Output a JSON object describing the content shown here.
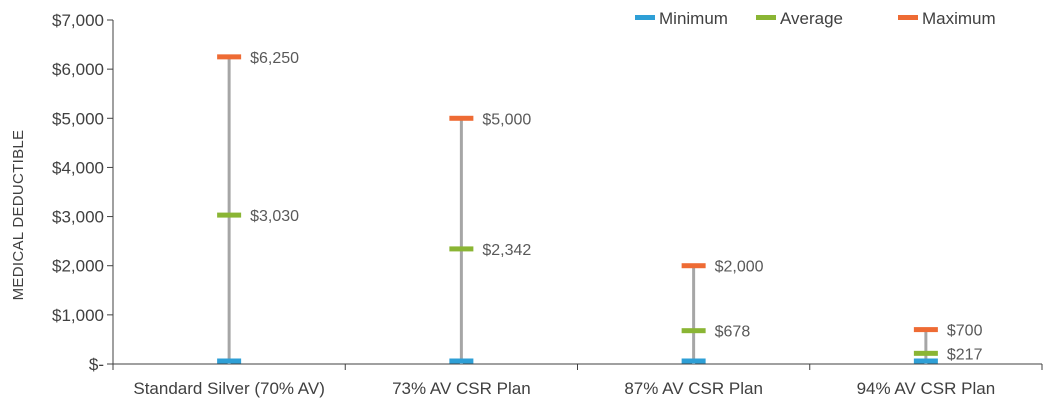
{
  "chart_data": {
    "type": "range",
    "ylabel": "MEDICAL DEDUCTIBLE",
    "ylim": [
      0,
      7000
    ],
    "y_ticks": [
      0,
      1000,
      2000,
      3000,
      4000,
      5000,
      6000,
      7000
    ],
    "y_tick_labels": [
      "$-",
      "$1,000",
      "$2,000",
      "$3,000",
      "$4,000",
      "$5,000",
      "$6,000",
      "$7,000"
    ],
    "categories": [
      "Standard Silver (70% AV)",
      "73% AV CSR Plan",
      "87% AV CSR Plan",
      "94% AV CSR Plan"
    ],
    "legend_position": "top-right",
    "series": [
      {
        "name": "Minimum",
        "color": "#2e9fd6",
        "values": [
          0,
          0,
          0,
          0
        ],
        "labels": [
          "",
          "",
          "",
          ""
        ]
      },
      {
        "name": "Average",
        "color": "#8ab534",
        "values": [
          3030,
          2342,
          678,
          217
        ],
        "labels": [
          "$3,030",
          "$2,342",
          "$678",
          "$217"
        ]
      },
      {
        "name": "Maximum",
        "color": "#ee6b34",
        "values": [
          6250,
          5000,
          2000,
          700
        ],
        "labels": [
          "$6,250",
          "$5,000",
          "$2,000",
          "$700"
        ]
      }
    ],
    "range_line_color": "#a6a6a6"
  }
}
